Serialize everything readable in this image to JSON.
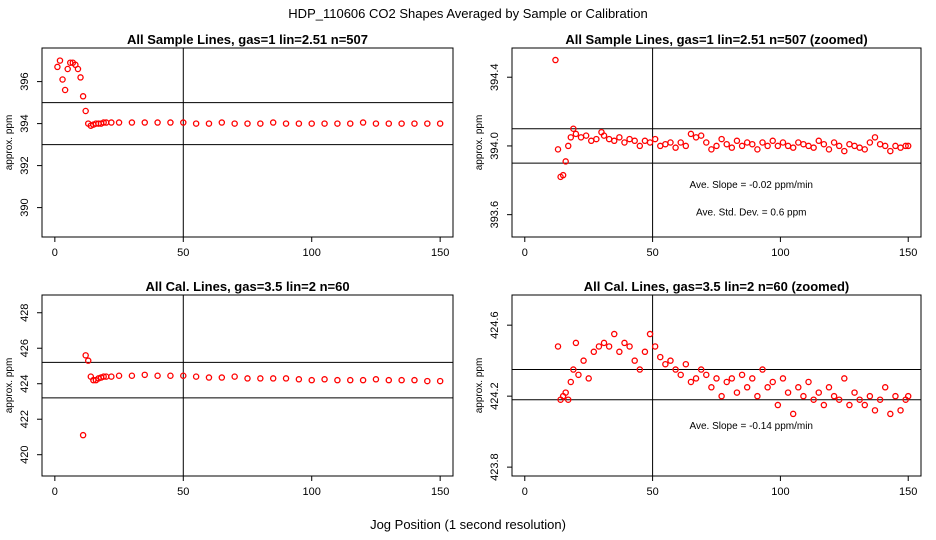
{
  "figure": {
    "title": "HDP_110606  CO2 Shapes Averaged by Sample or Calibration",
    "xlabel": "Jog Position (1 second resolution)"
  },
  "colors": {
    "points": "#ff0000",
    "axes": "#000000",
    "background": "#ffffff"
  },
  "chart_data": [
    {
      "type": "scatter",
      "title": "All Sample Lines, gas=1 lin=2.51 n=507",
      "xlabel": "",
      "ylabel": "approx. ppm",
      "xlim": [
        -5,
        155
      ],
      "ylim": [
        388.6,
        397.6
      ],
      "xticks": [
        0,
        50,
        100,
        150
      ],
      "yticks": [
        390,
        392,
        394,
        396
      ],
      "hlines": [
        395,
        393
      ],
      "vlines": [
        50
      ],
      "annotations": [],
      "series": [
        {
          "marker": "open-circle",
          "x": [
            1,
            2,
            3,
            4,
            5,
            6,
            7,
            8,
            9,
            10,
            11,
            12,
            13,
            14,
            15,
            16,
            17,
            18,
            19,
            20,
            22,
            25,
            30,
            35,
            40,
            45,
            50,
            55,
            60,
            65,
            70,
            75,
            80,
            85,
            90,
            95,
            100,
            105,
            110,
            115,
            120,
            125,
            130,
            135,
            140,
            145,
            150
          ],
          "y": [
            396.7,
            397.0,
            396.1,
            395.6,
            396.6,
            396.9,
            396.9,
            396.8,
            396.6,
            396.2,
            395.3,
            394.6,
            394.0,
            393.9,
            393.95,
            394.0,
            394.0,
            394.0,
            394.05,
            394.05,
            394.05,
            394.05,
            394.05,
            394.05,
            394.05,
            394.05,
            394.05,
            394.0,
            394.0,
            394.05,
            394.0,
            394.0,
            394.0,
            394.05,
            394.0,
            394.0,
            394.0,
            394.0,
            394.0,
            394.0,
            394.05,
            394.0,
            394.0,
            394.0,
            394.0,
            394.0,
            394.0
          ]
        }
      ]
    },
    {
      "type": "scatter",
      "title": "All Sample Lines, gas=1 lin=2.51 n=507 (zoomed)",
      "xlabel": "",
      "ylabel": "approx. ppm",
      "xlim": [
        -5,
        155
      ],
      "ylim": [
        393.47,
        394.57
      ],
      "xticks": [
        0,
        50,
        100,
        150
      ],
      "yticks": [
        393.6,
        394.0,
        394.4
      ],
      "hlines": [
        394.1,
        393.9
      ],
      "vlines": [
        50
      ],
      "annotations": [
        "Ave. Slope =  -0.02  ppm/min",
        "Ave. Std. Dev. =  0.6  ppm"
      ],
      "series": [
        {
          "marker": "open-circle",
          "x": [
            12,
            13,
            14,
            15,
            16,
            17,
            18,
            19,
            20,
            22,
            24,
            26,
            28,
            30,
            31,
            33,
            35,
            37,
            39,
            41,
            43,
            45,
            47,
            49,
            51,
            53,
            55,
            57,
            59,
            61,
            63,
            65,
            67,
            69,
            71,
            73,
            75,
            77,
            79,
            81,
            83,
            85,
            87,
            89,
            91,
            93,
            95,
            97,
            99,
            101,
            103,
            105,
            107,
            109,
            111,
            113,
            115,
            117,
            119,
            121,
            123,
            125,
            127,
            129,
            131,
            133,
            135,
            137,
            139,
            141,
            143,
            145,
            147,
            149,
            150
          ],
          "y": [
            394.5,
            393.98,
            393.82,
            393.83,
            393.91,
            394.0,
            394.05,
            394.1,
            394.07,
            394.05,
            394.06,
            394.03,
            394.04,
            394.08,
            394.06,
            394.04,
            394.03,
            394.05,
            394.02,
            394.04,
            394.03,
            394.0,
            394.03,
            394.02,
            394.04,
            394.0,
            394.01,
            394.02,
            393.99,
            394.02,
            394.0,
            394.07,
            394.05,
            394.06,
            394.02,
            393.98,
            394.0,
            394.04,
            394.01,
            393.99,
            394.03,
            394.0,
            394.02,
            394.01,
            393.98,
            394.02,
            394.0,
            394.03,
            394.0,
            394.02,
            394.0,
            393.99,
            394.02,
            394.01,
            394.0,
            393.99,
            394.03,
            394.01,
            393.98,
            394.02,
            394.0,
            393.97,
            394.01,
            394.0,
            393.99,
            393.98,
            394.02,
            394.05,
            394.01,
            394.0,
            393.97,
            394.0,
            393.99,
            394.0,
            394.0
          ]
        }
      ]
    },
    {
      "type": "scatter",
      "title": "All Cal. Lines, gas=3.5 lin=2 n=60",
      "xlabel": "",
      "ylabel": "approx. ppm",
      "xlim": [
        -5,
        155
      ],
      "ylim": [
        418.8,
        429.0
      ],
      "xticks": [
        0,
        50,
        100,
        150
      ],
      "yticks": [
        420,
        422,
        424,
        426,
        428
      ],
      "hlines": [
        425.2,
        423.2
      ],
      "vlines": [
        50
      ],
      "annotations": [],
      "series": [
        {
          "marker": "open-circle",
          "x": [
            11,
            12,
            13,
            14,
            15,
            16,
            17,
            18,
            19,
            20,
            22,
            25,
            30,
            35,
            40,
            45,
            50,
            55,
            60,
            65,
            70,
            75,
            80,
            85,
            90,
            95,
            100,
            105,
            110,
            115,
            120,
            125,
            130,
            135,
            140,
            145,
            150
          ],
          "y": [
            421.1,
            425.6,
            425.3,
            424.4,
            424.2,
            424.2,
            424.3,
            424.35,
            424.4,
            424.4,
            424.4,
            424.45,
            424.45,
            424.5,
            424.45,
            424.45,
            424.45,
            424.4,
            424.35,
            424.35,
            424.4,
            424.3,
            424.3,
            424.3,
            424.3,
            424.25,
            424.2,
            424.25,
            424.2,
            424.2,
            424.2,
            424.25,
            424.2,
            424.2,
            424.2,
            424.15,
            424.15
          ]
        }
      ]
    },
    {
      "type": "scatter",
      "title": "All Cal. Lines, gas=3.5 lin=2 n=60 (zoomed)",
      "xlabel": "",
      "ylabel": "approx. ppm",
      "xlim": [
        -5,
        155
      ],
      "ylim": [
        423.75,
        424.77
      ],
      "xticks": [
        0,
        50,
        100,
        150
      ],
      "yticks": [
        423.8,
        424.2,
        424.6
      ],
      "hlines": [
        424.35,
        424.18
      ],
      "vlines": [
        50
      ],
      "annotations": [
        "Ave. Slope =  -0.14  ppm/min"
      ],
      "series": [
        {
          "marker": "open-circle",
          "x": [
            13,
            14,
            15,
            16,
            17,
            18,
            19,
            20,
            21,
            23,
            25,
            27,
            29,
            31,
            33,
            35,
            37,
            39,
            41,
            43,
            45,
            47,
            49,
            51,
            53,
            55,
            57,
            59,
            61,
            63,
            65,
            67,
            69,
            71,
            73,
            75,
            77,
            79,
            81,
            83,
            85,
            87,
            89,
            91,
            93,
            95,
            97,
            99,
            101,
            103,
            105,
            107,
            109,
            111,
            113,
            115,
            117,
            119,
            121,
            123,
            125,
            127,
            129,
            131,
            133,
            135,
            137,
            139,
            141,
            143,
            145,
            147,
            149,
            150
          ],
          "y": [
            424.48,
            424.18,
            424.2,
            424.22,
            424.18,
            424.28,
            424.35,
            424.5,
            424.32,
            424.4,
            424.3,
            424.45,
            424.48,
            424.5,
            424.48,
            424.55,
            424.45,
            424.5,
            424.48,
            424.4,
            424.35,
            424.45,
            424.55,
            424.48,
            424.42,
            424.38,
            424.4,
            424.35,
            424.32,
            424.38,
            424.28,
            424.3,
            424.35,
            424.32,
            424.25,
            424.3,
            424.2,
            424.28,
            424.3,
            424.22,
            424.32,
            424.25,
            424.3,
            424.2,
            424.35,
            424.25,
            424.28,
            424.15,
            424.3,
            424.22,
            424.1,
            424.25,
            424.2,
            424.28,
            424.18,
            424.22,
            424.15,
            424.25,
            424.2,
            424.18,
            424.3,
            424.15,
            424.22,
            424.18,
            424.15,
            424.2,
            424.12,
            424.18,
            424.25,
            424.1,
            424.2,
            424.12,
            424.18,
            424.2
          ]
        }
      ]
    }
  ]
}
